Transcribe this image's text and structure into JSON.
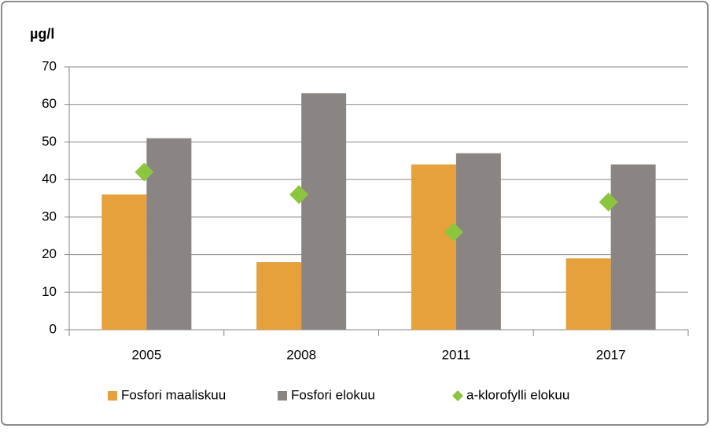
{
  "chart_data": {
    "type": "bar",
    "y_label": "µg/l",
    "categories": [
      "2005",
      "2008",
      "2011",
      "2017"
    ],
    "series": [
      {
        "name": "Fosfori maaliskuu",
        "color": "#e6a03c",
        "values": [
          36,
          18,
          44,
          19
        ]
      },
      {
        "name": "Fosfori elokuu",
        "color": "#8a8582",
        "values": [
          51,
          63,
          47,
          44
        ]
      },
      {
        "name": "a-klorofylli elokuu",
        "color": "#8cc63f",
        "marker": "diamond",
        "values": [
          42,
          36,
          26,
          34
        ]
      }
    ],
    "ylim": [
      0,
      70
    ],
    "yticks": [
      0,
      10,
      20,
      30,
      40,
      50,
      60,
      70
    ],
    "grid": true,
    "legend": "bottom"
  }
}
